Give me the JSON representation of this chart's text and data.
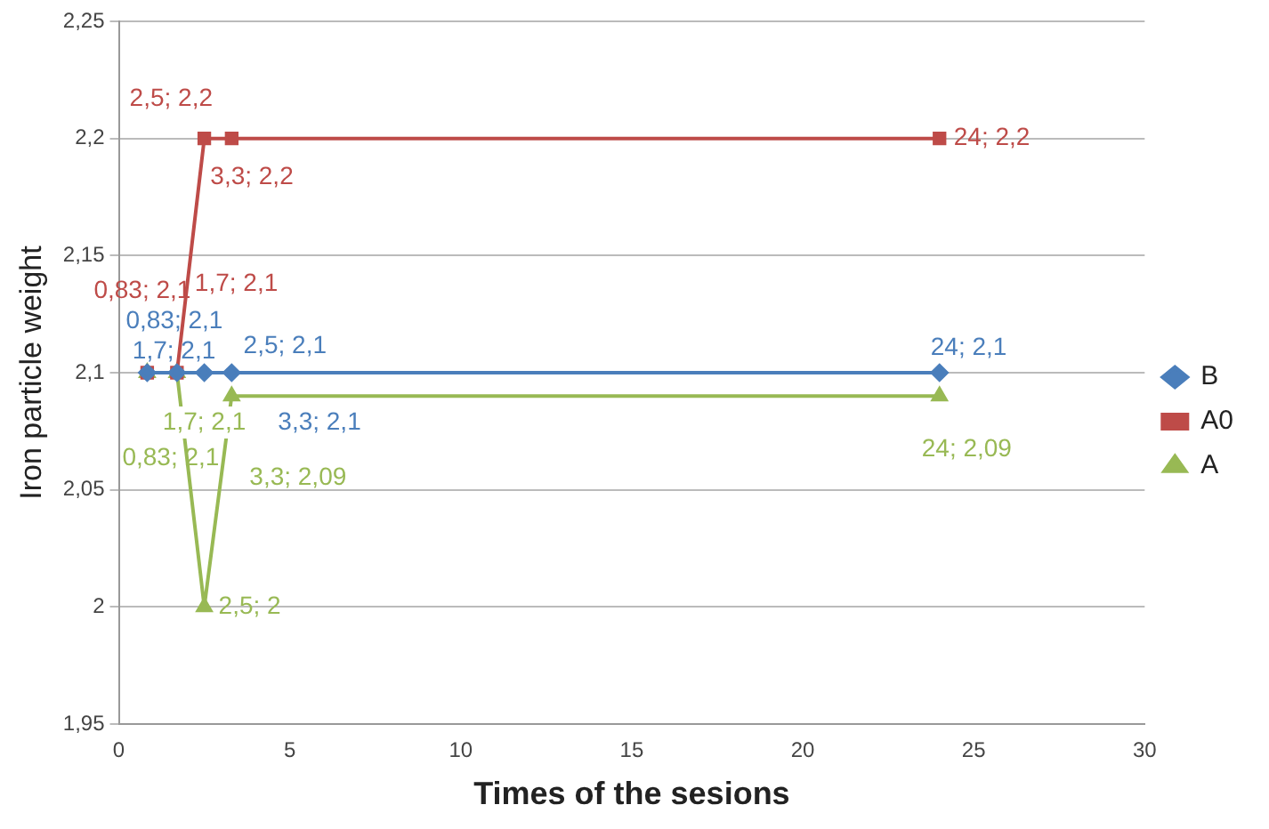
{
  "chart_data": {
    "type": "line",
    "xlabel": "Times of the sesions",
    "ylabel": "Iron particle weight",
    "xlim": [
      0,
      30
    ],
    "xticks": [
      0,
      5,
      10,
      15,
      20,
      25,
      30
    ],
    "ylim": [
      1.95,
      2.25
    ],
    "yticks": [
      {
        "value": 1.95,
        "label": "1,95"
      },
      {
        "value": 2,
        "label": "2"
      },
      {
        "value": 2.05,
        "label": "2,05"
      },
      {
        "value": 2.1,
        "label": "2,1"
      },
      {
        "value": 2.15,
        "label": "2,15"
      },
      {
        "value": 2.2,
        "label": "2,2"
      },
      {
        "value": 2.25,
        "label": "2,25"
      }
    ],
    "grid": "y",
    "legend": "right",
    "line_style": "solid",
    "series": [
      {
        "name": "B",
        "color": "#4a7ebb",
        "marker": "diamond",
        "x": [
          0.83,
          1.7,
          2.5,
          3.3,
          24
        ],
        "values": [
          2.1,
          2.1,
          2.1,
          2.1,
          2.1
        ],
        "value_labels": [
          "0,83; 2,1",
          "1,7; 2,1",
          "2,5; 2,1",
          "3,3; 2,1",
          "24; 2,1"
        ]
      },
      {
        "name": "A0",
        "color": "#be4b48",
        "marker": "square",
        "x": [
          0.83,
          1.7,
          2.5,
          3.3,
          24
        ],
        "values": [
          2.1,
          2.1,
          2.2,
          2.2,
          2.2
        ],
        "value_labels": [
          "0,83; 2,1",
          "1,7; 2,1",
          "2,5; 2,2",
          "3,3; 2,2",
          "24; 2,2"
        ]
      },
      {
        "name": "A",
        "color": "#98b954",
        "marker": "triangle",
        "x": [
          0.83,
          1.7,
          2.5,
          3.3,
          24
        ],
        "values": [
          2.1,
          2.1,
          2,
          2.09,
          2.09
        ],
        "value_labels": [
          "0,83; 2,1",
          "1,7; 2,1",
          "2,5; 2",
          "3,3; 2,09",
          "24; 2,09"
        ]
      }
    ]
  }
}
